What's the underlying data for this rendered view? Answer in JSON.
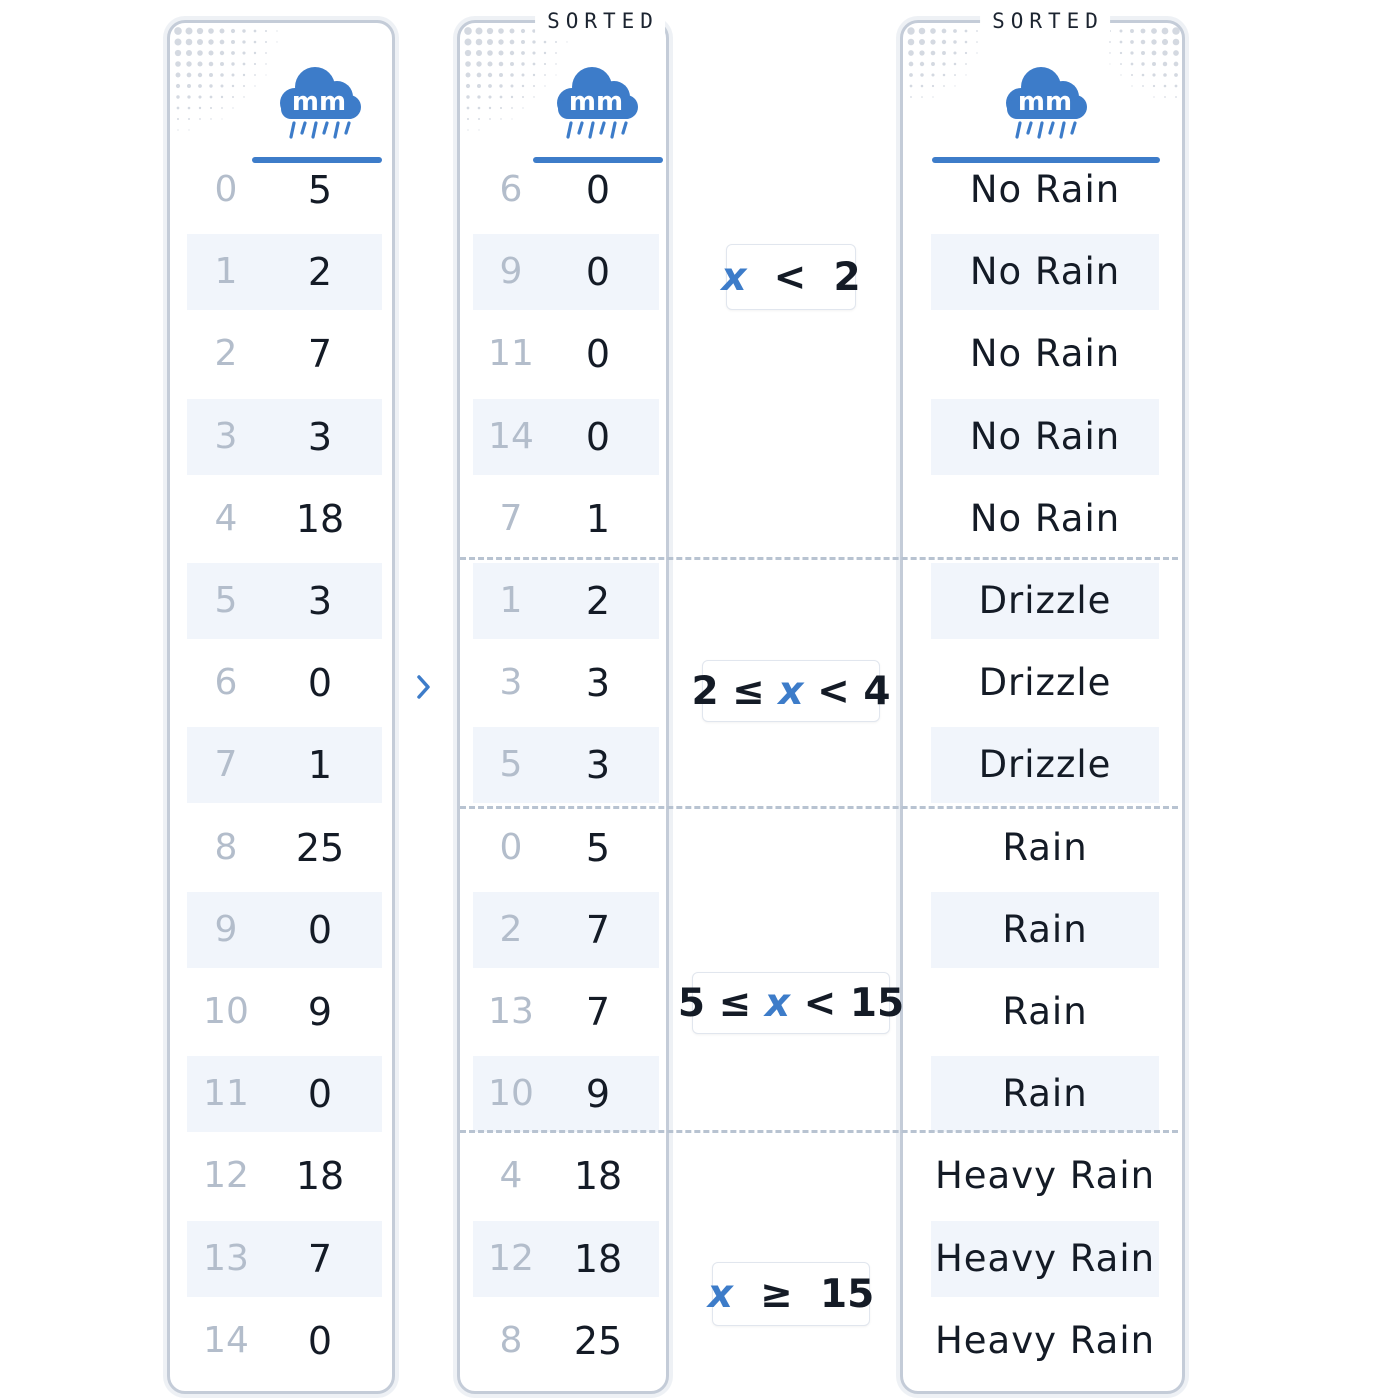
{
  "icons": {
    "column_header": "rain-cloud-icon",
    "arrow": "chevron-right-icon"
  },
  "colors": {
    "accent": "#3d7cc9",
    "panel_border": "#c4ccd8",
    "row_shade": "#f1f5fb",
    "index_text": "#b3bdcb",
    "text": "#141b26",
    "divider": "#b8c3d1"
  },
  "unit_label": "mm",
  "original": {
    "rows": [
      {
        "index": "0",
        "value": "5"
      },
      {
        "index": "1",
        "value": "2"
      },
      {
        "index": "2",
        "value": "7"
      },
      {
        "index": "3",
        "value": "3"
      },
      {
        "index": "4",
        "value": "18"
      },
      {
        "index": "5",
        "value": "3"
      },
      {
        "index": "6",
        "value": "0"
      },
      {
        "index": "7",
        "value": "1"
      },
      {
        "index": "8",
        "value": "25"
      },
      {
        "index": "9",
        "value": "0"
      },
      {
        "index": "10",
        "value": "9"
      },
      {
        "index": "11",
        "value": "0"
      },
      {
        "index": "12",
        "value": "18"
      },
      {
        "index": "13",
        "value": "7"
      },
      {
        "index": "14",
        "value": "0"
      }
    ]
  },
  "sorted": {
    "tab_label": "SORTED",
    "rows": [
      {
        "index": "6",
        "value": "0"
      },
      {
        "index": "9",
        "value": "0"
      },
      {
        "index": "11",
        "value": "0"
      },
      {
        "index": "14",
        "value": "0"
      },
      {
        "index": "7",
        "value": "1"
      },
      {
        "index": "1",
        "value": "2"
      },
      {
        "index": "3",
        "value": "3"
      },
      {
        "index": "5",
        "value": "3"
      },
      {
        "index": "0",
        "value": "5"
      },
      {
        "index": "2",
        "value": "7"
      },
      {
        "index": "13",
        "value": "7"
      },
      {
        "index": "10",
        "value": "9"
      },
      {
        "index": "4",
        "value": "18"
      },
      {
        "index": "12",
        "value": "18"
      },
      {
        "index": "8",
        "value": "25"
      }
    ]
  },
  "categories": {
    "tab_label": "SORTED",
    "rows": [
      "No Rain",
      "No Rain",
      "No Rain",
      "No Rain",
      "No Rain",
      "Drizzle",
      "Drizzle",
      "Drizzle",
      "Rain",
      "Rain",
      "Rain",
      "Rain",
      "Heavy Rain",
      "Heavy Rain",
      "Heavy Rain"
    ]
  },
  "conditions": [
    {
      "pre": "",
      "var": "x",
      "post": "  <  2"
    },
    {
      "pre": "2 ≤ ",
      "var": "x",
      "post": " < 4"
    },
    {
      "pre": "5 ≤ ",
      "var": "x",
      "post": " < 15"
    },
    {
      "pre": "",
      "var": "x",
      "post": "  ≥  15"
    }
  ]
}
